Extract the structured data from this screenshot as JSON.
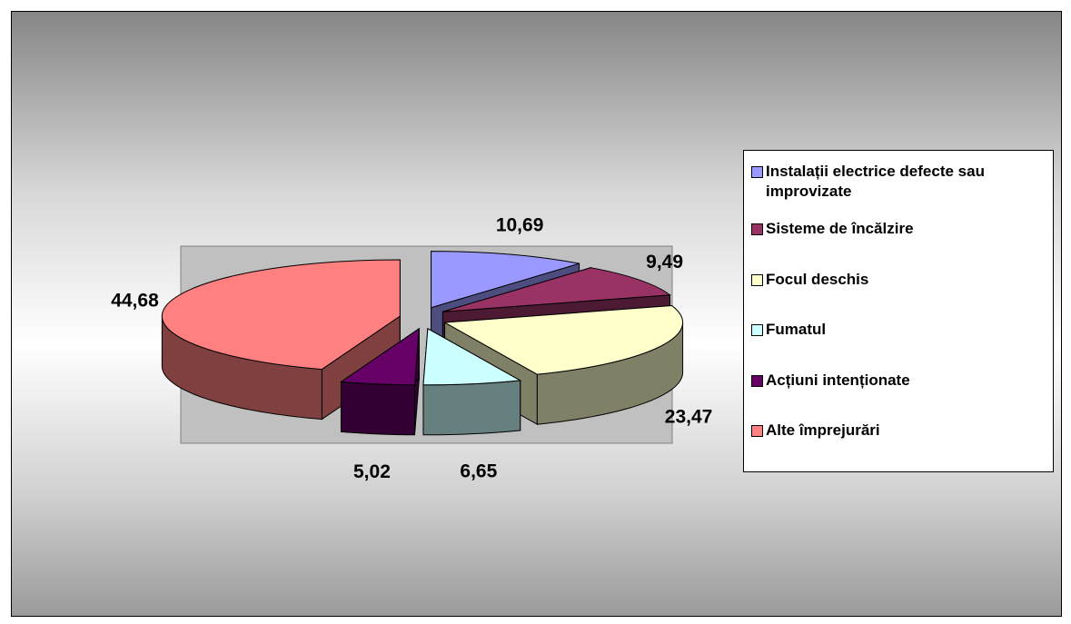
{
  "chart_data": {
    "type": "pie",
    "categories": [
      "Instalații electrice defecte sau improvizate",
      "Sisteme de încălzire",
      "Focul deschis",
      "Fumatul",
      "Acțiuni intenționate",
      "Alte împrejurări"
    ],
    "values": [
      10.69,
      9.49,
      23.47,
      6.65,
      5.02,
      44.68
    ],
    "value_labels": [
      "10,69",
      "9,49",
      "23,47",
      "6,65",
      "5,02",
      "44,68"
    ],
    "colors": [
      "#9999ff",
      "#993366",
      "#ffffcc",
      "#ccffff",
      "#660066",
      "#ff8080"
    ]
  }
}
